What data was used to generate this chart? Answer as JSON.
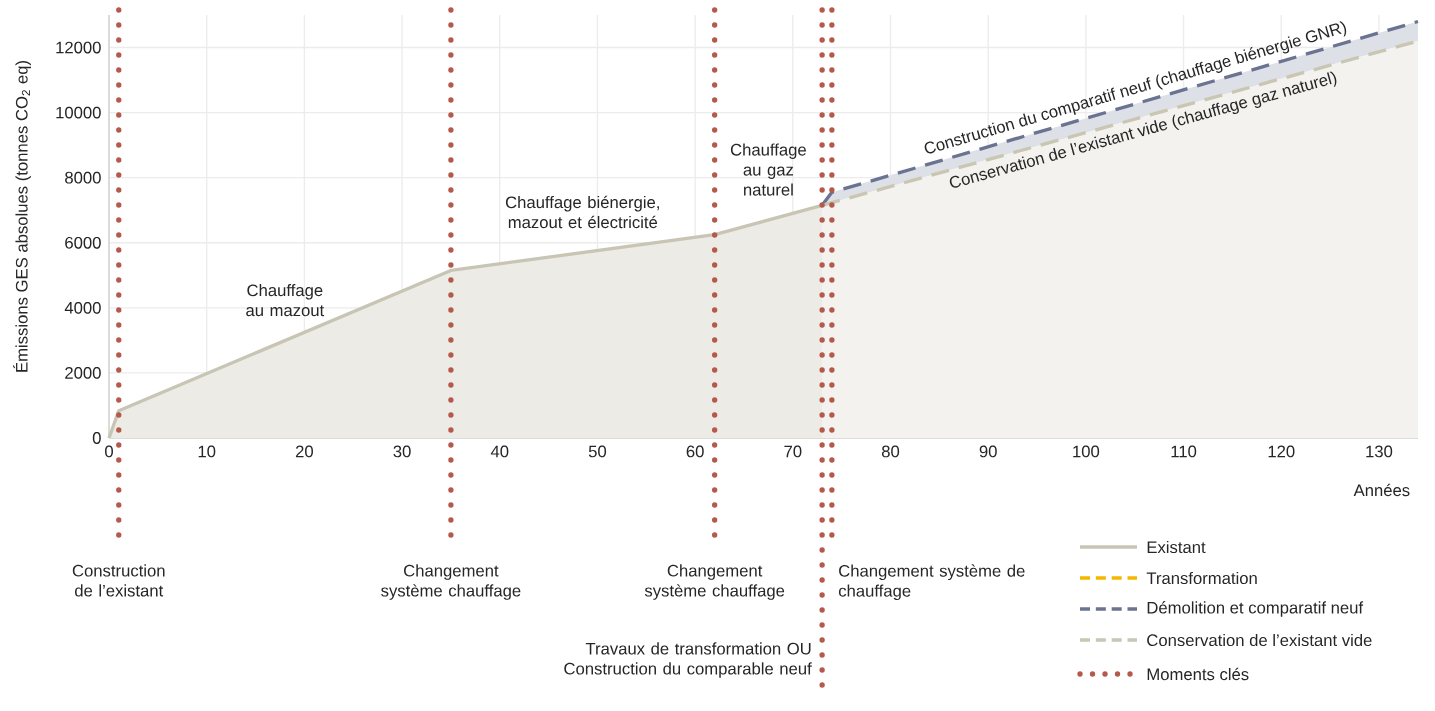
{
  "chart_data": {
    "type": "line",
    "xlabel": "Années",
    "ylabel": "Émissions GES absolues   (tonnes CO$_{2}$ eq)",
    "xlim": [
      0,
      134
    ],
    "ylim": [
      0,
      13000
    ],
    "xticks": [
      0,
      10,
      20,
      30,
      40,
      50,
      60,
      70,
      80,
      90,
      100,
      110,
      120,
      130
    ],
    "yticks": [
      0,
      2000,
      4000,
      6000,
      8000,
      10000,
      12000
    ],
    "grid": true,
    "legend": "bottom right",
    "marker": "none",
    "series": [
      {
        "name": "Existant",
        "type": "area",
        "color": "#c8c5b5",
        "line_style": "solid",
        "x": [
          0,
          1,
          35,
          62,
          73
        ],
        "values": [
          0,
          840,
          5150,
          6250,
          7150
        ]
      },
      {
        "name": "Transformation",
        "color": "#f5b800",
        "line_style": "dashed",
        "values": [
          null
        ]
      },
      {
        "name": "Démolition et comparatif neuf",
        "color": "#6b7393",
        "line_style": "dashed",
        "x": [
          73,
          74,
          134
        ],
        "values": [
          7150,
          7550,
          12800
        ],
        "lower": [
          7150,
          7230,
          12200
        ],
        "upper": [
          7150,
          7550,
          12800
        ]
      },
      {
        "name": "Conservation de l’existant vide",
        "type": "area",
        "color": "#c9c6b2",
        "line_style": "dashed",
        "x": [
          73,
          134
        ],
        "values": [
          7150,
          12200
        ]
      }
    ],
    "ref_lines": [
      {
        "axis": "x",
        "value": 1,
        "label": "Construction de l’existant",
        "color": "#b5594b",
        "line_style": "dotted"
      },
      {
        "axis": "x",
        "value": 35,
        "label": "Changement système chauffage",
        "color": "#b5594b",
        "line_style": "dotted"
      },
      {
        "axis": "x",
        "value": 62,
        "label": "Changement système chauffage",
        "color": "#b5594b",
        "line_style": "dotted"
      },
      {
        "axis": "x",
        "value": 73,
        "label": "Travaux de transformation OU Construction du comparable neuf",
        "color": "#b5594b",
        "line_style": "dotted"
      },
      {
        "axis": "x",
        "value": 74,
        "label": "Changement système de chauffage",
        "color": "#b5594b",
        "line_style": "dotted"
      }
    ],
    "annotations": [
      "Chauffage au mazout",
      "Chauffage biénergie, mazout et électricité",
      "Chauffage au gaz naturel",
      "Construction du comparatif neuf (chauffage biénergie GNR)",
      "Conservation de l’existant vide (chauffage gaz naturel)",
      "Moments clés"
    ]
  }
}
